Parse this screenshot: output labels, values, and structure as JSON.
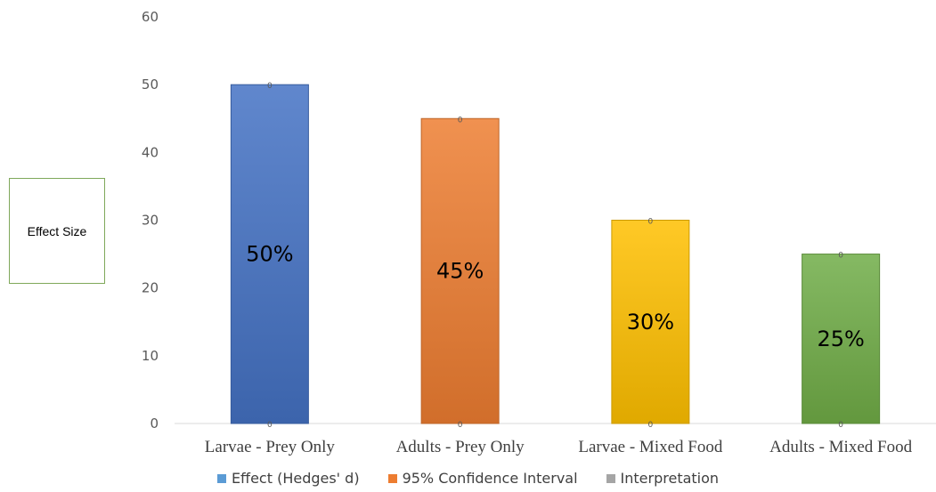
{
  "chart_data": {
    "type": "bar",
    "categories": [
      "Larvae - Prey Only",
      "Adults - Prey Only",
      "Larvae - Mixed Food",
      "Adults - Mixed Food"
    ],
    "values": [
      50,
      45,
      30,
      25
    ],
    "bar_labels": [
      "50%",
      "45%",
      "30%",
      "25%"
    ],
    "end_labels": [
      "0",
      "0",
      "0",
      "0"
    ],
    "bar_colors": [
      "#4472c4",
      "#ed7d31",
      "#ffc000",
      "#70ad47"
    ],
    "ylabel": "Effect Size",
    "ylim": [
      0,
      60
    ],
    "yticks": [
      0,
      10,
      20,
      30,
      40,
      50,
      60
    ],
    "grid": false,
    "legend_position": "bottom",
    "legend": [
      {
        "name": "Effect (Hedges' d)",
        "color": "#5b9bd5"
      },
      {
        "name": "95% Confidence Interval",
        "color": "#ed7d31"
      },
      {
        "name": "Interpretation",
        "color": "#a5a5a5"
      }
    ]
  }
}
